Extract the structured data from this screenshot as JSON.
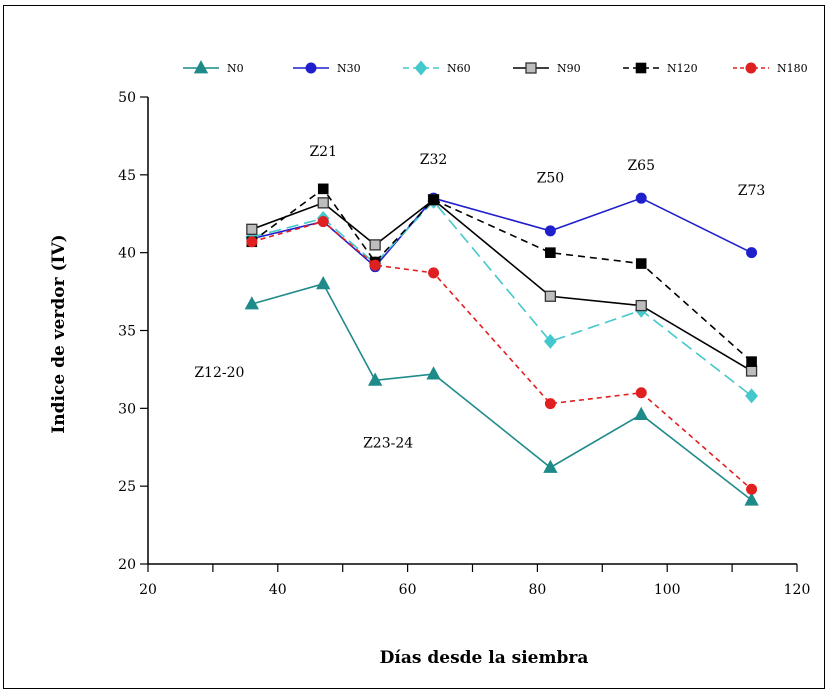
{
  "chart_data": {
    "type": "line",
    "xlabel": "Días desde la siembra",
    "ylabel": "Indice de verdor (IV)",
    "xlim": [
      20,
      120
    ],
    "ylim": [
      20,
      50
    ],
    "xticks": [
      20,
      40,
      60,
      80,
      100,
      120
    ],
    "yticks": [
      20,
      25,
      30,
      35,
      40,
      45,
      50
    ],
    "grid": false,
    "legend_position": "top",
    "x": [
      36,
      47,
      55,
      64,
      82,
      96,
      113
    ],
    "series": [
      {
        "name": "N0",
        "color": "#1f8a8a",
        "marker": "triangle",
        "dash": "solid",
        "values": [
          36.7,
          38.0,
          31.8,
          32.2,
          26.2,
          29.6,
          24.1
        ]
      },
      {
        "name": "N30",
        "color": "#1f1fcc",
        "marker": "circle",
        "dash": "solid",
        "values": [
          40.9,
          42.0,
          39.1,
          43.5,
          41.4,
          43.5,
          40.0
        ]
      },
      {
        "name": "N60",
        "color": "#44c8cc",
        "marker": "diamond",
        "dash": "long-dash",
        "values": [
          41.0,
          42.2,
          39.3,
          43.3,
          34.3,
          36.3,
          30.8
        ]
      },
      {
        "name": "N90",
        "color": "#000000",
        "marker": "square-open",
        "dash": "solid",
        "values": [
          41.5,
          43.2,
          40.5,
          43.4,
          37.2,
          36.6,
          32.4
        ]
      },
      {
        "name": "N120",
        "color": "#000000",
        "marker": "square",
        "dash": "dash",
        "values": [
          40.7,
          44.1,
          39.4,
          43.4,
          40.0,
          39.3,
          33.0
        ]
      },
      {
        "name": "N180",
        "color": "#e02020",
        "marker": "circle",
        "dash": "dot-dash",
        "values": [
          40.7,
          42.0,
          39.2,
          38.7,
          30.3,
          31.0,
          24.8
        ]
      }
    ],
    "annotations": [
      {
        "text": "Z12-20",
        "x": 31,
        "y": 32.0
      },
      {
        "text": "Z21",
        "x": 47,
        "y": 46.2
      },
      {
        "text": "Z23-24",
        "x": 57,
        "y": 27.5
      },
      {
        "text": "Z32",
        "x": 64,
        "y": 45.7
      },
      {
        "text": "Z50",
        "x": 82,
        "y": 44.5
      },
      {
        "text": "Z65",
        "x": 96,
        "y": 45.3
      },
      {
        "text": "Z73",
        "x": 113,
        "y": 43.7
      }
    ]
  }
}
